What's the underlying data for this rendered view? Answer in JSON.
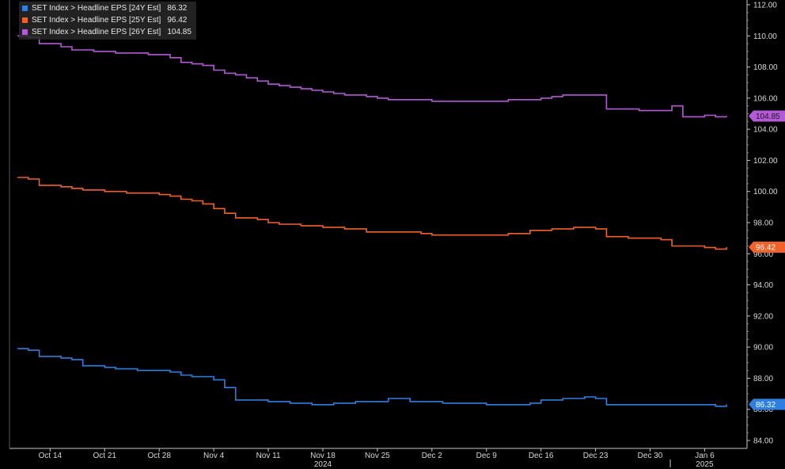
{
  "chart_data": {
    "type": "line",
    "title": "",
    "xlabel": "",
    "ylabel": "",
    "ylim": [
      84,
      112
    ],
    "y_ticks": [
      "84.00",
      "86.00",
      "88.00",
      "90.00",
      "92.00",
      "94.00",
      "96.00",
      "98.00",
      "100.00",
      "102.00",
      "104.00",
      "106.00",
      "108.00",
      "110.00",
      "112.00"
    ],
    "x_ticks": [
      "Oct 14",
      "Oct 21",
      "Oct 28",
      "Nov 4",
      "Nov 11",
      "Nov 18",
      "Nov 25",
      "Dec 2",
      "Dec 9",
      "Dec 16",
      "Dec 23",
      "Dec 30",
      "Jan 6"
    ],
    "x_years": [
      "2024",
      "2025"
    ],
    "grid": true,
    "legend_position": "top-left",
    "x": [
      "Oct 9",
      "Oct 10",
      "Oct 11",
      "Oct 14",
      "Oct 15",
      "Oct 16",
      "Oct 17",
      "Oct 18",
      "Oct 21",
      "Oct 22",
      "Oct 23",
      "Oct 24",
      "Oct 25",
      "Oct 28",
      "Oct 29",
      "Oct 30",
      "Oct 31",
      "Nov 1",
      "Nov 4",
      "Nov 5",
      "Nov 6",
      "Nov 7",
      "Nov 8",
      "Nov 11",
      "Nov 12",
      "Nov 13",
      "Nov 14",
      "Nov 15",
      "Nov 18",
      "Nov 19",
      "Nov 20",
      "Nov 21",
      "Nov 22",
      "Nov 25",
      "Nov 26",
      "Nov 27",
      "Nov 28",
      "Nov 29",
      "Dec 2",
      "Dec 3",
      "Dec 4",
      "Dec 5",
      "Dec 6",
      "Dec 9",
      "Dec 10",
      "Dec 11",
      "Dec 12",
      "Dec 13",
      "Dec 16",
      "Dec 17",
      "Dec 18",
      "Dec 19",
      "Dec 20",
      "Dec 23",
      "Dec 24",
      "Dec 25",
      "Dec 26",
      "Dec 27",
      "Dec 30",
      "Dec 31",
      "Jan 1",
      "Jan 2",
      "Jan 3",
      "Jan 6",
      "Jan 7",
      "Jan 8"
    ],
    "series": [
      {
        "name": "SET Index > Headline EPS [24Y Est]",
        "last_label": "86.32",
        "color": "#2f7fe0",
        "values": [
          89.9,
          89.8,
          89.4,
          89.4,
          89.3,
          89.2,
          88.8,
          88.8,
          88.7,
          88.6,
          88.6,
          88.5,
          88.5,
          88.5,
          88.4,
          88.2,
          88.1,
          88.1,
          87.9,
          87.4,
          86.6,
          86.6,
          86.6,
          86.5,
          86.5,
          86.4,
          86.4,
          86.3,
          86.3,
          86.4,
          86.4,
          86.5,
          86.5,
          86.5,
          86.7,
          86.7,
          86.5,
          86.5,
          86.5,
          86.4,
          86.4,
          86.4,
          86.4,
          86.3,
          86.3,
          86.3,
          86.3,
          86.4,
          86.6,
          86.6,
          86.7,
          86.7,
          86.8,
          86.7,
          86.3,
          86.3,
          86.3,
          86.3,
          86.3,
          86.3,
          86.3,
          86.3,
          86.3,
          86.3,
          86.2,
          86.32
        ]
      },
      {
        "name": "SET Index > Headline EPS [25Y Est]",
        "last_label": "96.42",
        "color": "#f0622a",
        "values": [
          100.9,
          100.8,
          100.4,
          100.4,
          100.3,
          100.2,
          100.1,
          100.1,
          100.0,
          100.0,
          99.9,
          99.9,
          99.9,
          99.8,
          99.7,
          99.5,
          99.4,
          99.2,
          98.9,
          98.6,
          98.3,
          98.3,
          98.2,
          98.0,
          97.9,
          97.9,
          97.8,
          97.8,
          97.7,
          97.7,
          97.6,
          97.6,
          97.4,
          97.4,
          97.4,
          97.4,
          97.4,
          97.3,
          97.2,
          97.2,
          97.2,
          97.2,
          97.2,
          97.2,
          97.2,
          97.3,
          97.3,
          97.5,
          97.5,
          97.6,
          97.6,
          97.7,
          97.7,
          97.6,
          97.1,
          97.1,
          97.0,
          97.0,
          97.0,
          96.9,
          96.5,
          96.5,
          96.5,
          96.4,
          96.3,
          96.42
        ]
      },
      {
        "name": "SET Index > Headline EPS [26Y Est]",
        "last_label": "104.85",
        "color": "#b45ad6",
        "values": [
          110.0,
          109.9,
          109.5,
          109.5,
          109.3,
          109.1,
          109.1,
          109.0,
          109.0,
          108.9,
          108.9,
          108.9,
          108.8,
          108.8,
          108.6,
          108.3,
          108.2,
          108.1,
          107.8,
          107.6,
          107.5,
          107.3,
          107.1,
          106.9,
          106.8,
          106.7,
          106.6,
          106.5,
          106.4,
          106.3,
          106.2,
          106.2,
          106.1,
          106.0,
          105.9,
          105.9,
          105.9,
          105.9,
          105.8,
          105.8,
          105.8,
          105.8,
          105.8,
          105.8,
          105.8,
          105.9,
          105.9,
          105.9,
          106.0,
          106.1,
          106.2,
          106.2,
          106.2,
          106.2,
          105.3,
          105.3,
          105.3,
          105.2,
          105.2,
          105.2,
          105.5,
          104.8,
          104.8,
          104.9,
          104.8,
          104.85
        ]
      }
    ]
  },
  "legend": {
    "rows": [
      {
        "label": "SET Index > Headline EPS [24Y Est]",
        "value": "86.32"
      },
      {
        "label": "SET Index > Headline EPS [25Y Est]",
        "value": "96.42"
      },
      {
        "label": "SET Index > Headline EPS [26Y Est]",
        "value": "104.85"
      }
    ]
  },
  "colors": {
    "background": "#000000",
    "axis": "#c8c8c8",
    "grid": "#3a3a3a"
  }
}
